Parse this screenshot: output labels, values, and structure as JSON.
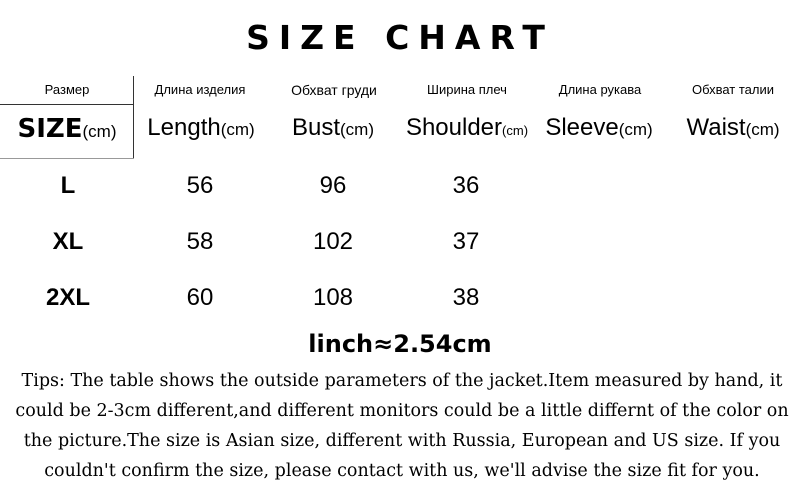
{
  "title": "SIZE CHART",
  "headers": [
    {
      "ru": "Размер",
      "en": "SIZE",
      "unit": "(cm)"
    },
    {
      "ru": "Длина изделия",
      "en": "Length",
      "unit": "(cm)"
    },
    {
      "ru": "Обхват груди",
      "en": "Bust",
      "unit": "(cm)"
    },
    {
      "ru": "Ширина плеч",
      "en": "Shoulder",
      "unit": "(cm)"
    },
    {
      "ru": "Длина рукава",
      "en": "Sleeve",
      "unit": "(cm)"
    },
    {
      "ru": "Обхват талии",
      "en": "Waist",
      "unit": "(cm)"
    }
  ],
  "rows": [
    {
      "size": "L",
      "length": "56",
      "bust": "96",
      "shoulder": "36"
    },
    {
      "size": "XL",
      "length": "58",
      "bust": "102",
      "shoulder": "37"
    },
    {
      "size": "2XL",
      "length": "60",
      "bust": "108",
      "shoulder": "38"
    }
  ],
  "conversion": "linch≈2.54cm",
  "tips": "Tips:  The table shows the outside parameters of the jacket.Item measured by hand, it could be 2-3cm different,and different monitors could be a little differnt of the color on the picture.The size is Asian size, different with Russia, European and US size. If you couldn't confirm the size, please contact with us, we'll advise the size fit for you."
}
